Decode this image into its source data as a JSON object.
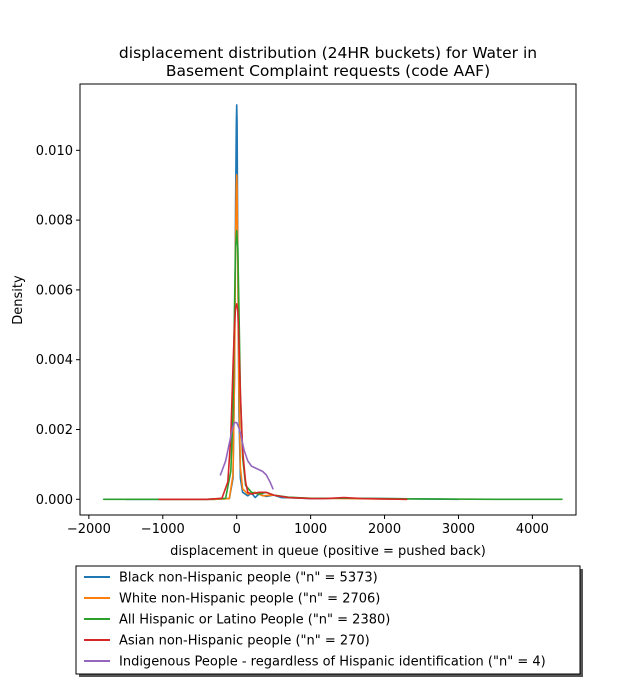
{
  "chart_data": {
    "type": "line",
    "title_lines": [
      "displacement distribution (24HR buckets) for Water in",
      "Basement Complaint requests (code AAF)"
    ],
    "xlabel": "displacement in queue (positive = pushed back)",
    "ylabel": "Density",
    "xlim": [
      -2120,
      4590
    ],
    "ylim": [
      -0.00045,
      0.0119
    ],
    "xticks": [
      -2000,
      -1000,
      0,
      1000,
      2000,
      3000,
      4000
    ],
    "xtick_labels": [
      "−2000",
      "−1000",
      "0",
      "1000",
      "2000",
      "3000",
      "4000"
    ],
    "yticks": [
      0.0,
      0.002,
      0.004,
      0.006,
      0.008,
      0.01
    ],
    "ytick_labels": [
      "0.000",
      "0.002",
      "0.004",
      "0.006",
      "0.008",
      "0.010"
    ],
    "legend_position": "bottom-center",
    "series": [
      {
        "name": "Black non-Hispanic people (\"n\" = 5373)",
        "color": "#1f77b4",
        "x": [
          -1500,
          -300,
          -100,
          -50,
          -30,
          -15,
          -5,
          0,
          5,
          15,
          30,
          50,
          80,
          150,
          200,
          250,
          300,
          400,
          500,
          600,
          800,
          1000,
          1500,
          3000
        ],
        "y": [
          0,
          0,
          2e-05,
          0.0006,
          0.0035,
          0.0085,
          0.0108,
          0.0113,
          0.0108,
          0.007,
          0.0025,
          0.0006,
          0.0002,
          0.0001,
          0.00018,
          5e-05,
          0.00015,
          8e-05,
          0.00012,
          5e-05,
          4e-05,
          2e-05,
          3e-05,
          0
        ]
      },
      {
        "name": "White non-Hispanic people (\"n\" = 2706)",
        "color": "#ff7f0e",
        "x": [
          -1050,
          -300,
          -100,
          -50,
          -30,
          -15,
          -5,
          0,
          5,
          15,
          30,
          50,
          80,
          150,
          250,
          350,
          500,
          700,
          1000,
          1500,
          2300
        ],
        "y": [
          0,
          0,
          2e-05,
          0.0007,
          0.0035,
          0.0075,
          0.009,
          0.0093,
          0.0089,
          0.0068,
          0.0032,
          0.0009,
          0.0003,
          0.00015,
          0.0002,
          0.0001,
          0.00012,
          5e-05,
          3e-05,
          2e-05,
          0
        ]
      },
      {
        "name": "All Hispanic or Latino People (\"n\" = 2380)",
        "color": "#2ca02c",
        "x": [
          -1800,
          -400,
          -150,
          -80,
          -50,
          -30,
          -15,
          0,
          15,
          30,
          50,
          80,
          120,
          200,
          300,
          400,
          500,
          700,
          1000,
          1500,
          2500,
          3500,
          4400
        ],
        "y": [
          0,
          0,
          3e-05,
          0.0008,
          0.0025,
          0.0055,
          0.0072,
          0.0077,
          0.0072,
          0.0055,
          0.003,
          0.0012,
          0.0004,
          0.0002,
          0.00015,
          0.0002,
          0.00012,
          6e-05,
          3e-05,
          3e-05,
          1e-05,
          0,
          0
        ]
      },
      {
        "name": "Asian non-Hispanic people (\"n\" = 270)",
        "color": "#d62728",
        "x": [
          -1050,
          -400,
          -200,
          -120,
          -80,
          -50,
          -30,
          -15,
          0,
          15,
          30,
          50,
          80,
          120,
          150,
          200,
          300,
          400,
          500,
          700,
          1000,
          1200,
          1450,
          1700,
          2300
        ],
        "y": [
          0,
          0,
          3e-05,
          0.0005,
          0.0018,
          0.0038,
          0.005,
          0.0055,
          0.0056,
          0.0054,
          0.0045,
          0.003,
          0.0014,
          0.0005,
          0.0002,
          0.00015,
          0.0002,
          0.0002,
          0.00012,
          5e-05,
          2e-05,
          2e-05,
          5e-05,
          2e-05,
          0
        ]
      },
      {
        "name": "Indigenous People - regardless of Hispanic identification (\"n\" = 4)",
        "color": "#9467bd",
        "x": [
          -220,
          -150,
          -100,
          -60,
          -30,
          -10,
          0,
          20,
          50,
          100,
          150,
          200,
          250,
          300,
          350,
          400,
          450,
          490
        ],
        "y": [
          0.0007,
          0.0011,
          0.0016,
          0.002,
          0.0022,
          0.0022,
          0.0022,
          0.0021,
          0.0019,
          0.0014,
          0.0011,
          0.00095,
          0.0009,
          0.00085,
          0.0008,
          0.0007,
          0.0005,
          0.0003
        ]
      }
    ]
  }
}
